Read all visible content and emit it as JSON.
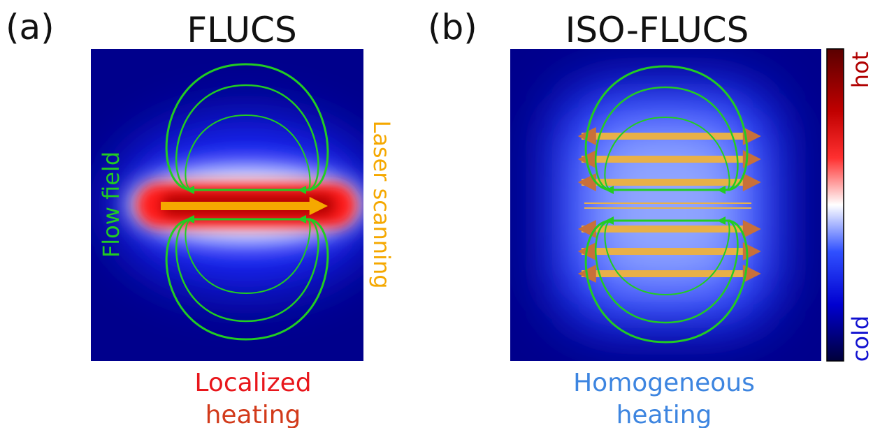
{
  "panel_a": {
    "label": "(a)",
    "title": "FLUCS",
    "left_label": "Flow field",
    "right_label": "Laser scanning",
    "caption": [
      "Localized",
      "heating"
    ]
  },
  "panel_b": {
    "label": "(b)",
    "title": "ISO-FLUCS",
    "caption": [
      "Homogeneous",
      "heating"
    ]
  },
  "colorbar": {
    "max_label": "hot",
    "min_label": "cold"
  }
}
